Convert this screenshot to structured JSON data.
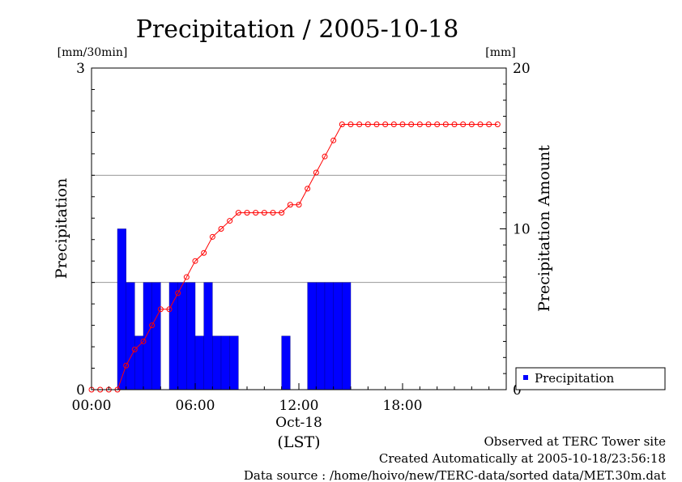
{
  "chart_data": {
    "type": "bar",
    "title": "Precipitation / 2005-10-18",
    "left_axis": {
      "label": "Precipitation",
      "unit": "[mm/30min]",
      "ylim": [
        0,
        3
      ],
      "ticks": [
        "0",
        "3"
      ]
    },
    "right_axis": {
      "label": "Precipitation Amount",
      "unit": "[mm]",
      "ylim": [
        0,
        20
      ],
      "ticks": [
        "0",
        "10",
        "20"
      ]
    },
    "x_axis": {
      "ticks": [
        "00:00",
        "06:00",
        "12:00",
        "18:00"
      ],
      "date_label": "Oct-18",
      "tz_label": "(LST)"
    },
    "grid": true,
    "legend": {
      "position": "bottom-right",
      "entries": [
        "Precipitation"
      ]
    },
    "bar_color": "#0000ff",
    "line_color": "#ff0000",
    "series": [
      {
        "name": "Precipitation",
        "type": "bar",
        "axis": "left",
        "x": [
          "00:00",
          "00:30",
          "01:00",
          "01:30",
          "02:00",
          "02:30",
          "03:00",
          "03:30",
          "04:00",
          "04:30",
          "05:00",
          "05:30",
          "06:00",
          "06:30",
          "07:00",
          "07:30",
          "08:00",
          "08:30",
          "09:00",
          "09:30",
          "10:00",
          "10:30",
          "11:00",
          "11:30",
          "12:00",
          "12:30",
          "13:00",
          "13:30",
          "14:00",
          "14:30",
          "15:00",
          "15:30",
          "16:00",
          "16:30",
          "17:00",
          "17:30",
          "18:00",
          "18:30",
          "19:00",
          "19:30",
          "20:00",
          "20:30",
          "21:00",
          "21:30",
          "22:00",
          "22:30",
          "23:00",
          "23:30"
        ],
        "values": [
          0,
          0,
          0,
          1.5,
          1.0,
          0.5,
          1.0,
          1.0,
          0,
          1.0,
          1.0,
          1.0,
          0.5,
          1.0,
          0.5,
          0.5,
          0.5,
          0,
          0,
          0,
          0,
          0,
          0.5,
          0,
          0,
          1.0,
          1.0,
          1.0,
          1.0,
          1.0,
          0,
          0,
          0,
          0,
          0,
          0,
          0,
          0,
          0,
          0,
          0,
          0,
          0,
          0,
          0,
          0,
          0,
          0
        ]
      },
      {
        "name": "Precipitation Amount",
        "type": "line",
        "axis": "right",
        "x": [
          "00:00",
          "00:30",
          "01:00",
          "01:30",
          "02:00",
          "02:30",
          "03:00",
          "03:30",
          "04:00",
          "04:30",
          "05:00",
          "05:30",
          "06:00",
          "06:30",
          "07:00",
          "07:30",
          "08:00",
          "08:30",
          "09:00",
          "09:30",
          "10:00",
          "10:30",
          "11:00",
          "11:30",
          "12:00",
          "12:30",
          "13:00",
          "13:30",
          "14:00",
          "14:30",
          "15:00",
          "15:30",
          "16:00",
          "16:30",
          "17:00",
          "17:30",
          "18:00",
          "18:30",
          "19:00",
          "19:30",
          "20:00",
          "20:30",
          "21:00",
          "21:30",
          "22:00",
          "22:30",
          "23:00",
          "23:30"
        ],
        "values": [
          0,
          0,
          0,
          0,
          1.5,
          2.5,
          3.0,
          4.0,
          5.0,
          5.0,
          6.0,
          7.0,
          8.0,
          8.5,
          9.5,
          10.0,
          10.5,
          11.0,
          11.0,
          11.0,
          11.0,
          11.0,
          11.0,
          11.5,
          11.5,
          12.5,
          13.5,
          14.5,
          15.5,
          16.5,
          16.5,
          16.5,
          16.5,
          16.5,
          16.5,
          16.5,
          16.5,
          16.5,
          16.5,
          16.5,
          16.5,
          16.5,
          16.5,
          16.5,
          16.5,
          16.5,
          16.5,
          16.5
        ]
      }
    ]
  },
  "footer": {
    "line1": "Observed at TERC Tower site",
    "line2": "Created Automatically at 2005-10-18/23:56:18",
    "line3": "Data source : /home/hoivo/new/TERC-data/sorted  data/MET.30m.dat"
  }
}
